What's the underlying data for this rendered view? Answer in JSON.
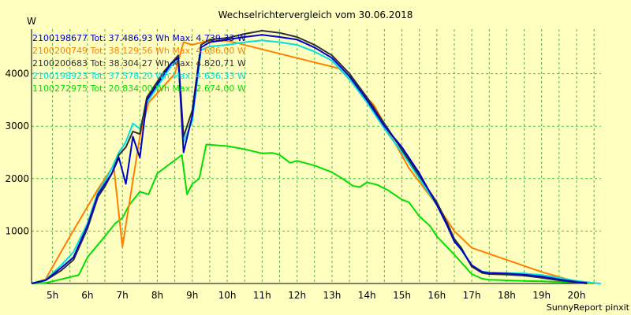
{
  "chart_data": {
    "type": "line",
    "title": "Wechselrichtervergleich vom 30.06.2018",
    "ylabel": "W",
    "xlabel": "",
    "footer": "SunnyReport pinxit",
    "ylim": [
      0,
      4850
    ],
    "xlim": [
      4.4,
      20.7
    ],
    "grid": true,
    "legend_position": "top-left",
    "y_ticks": [
      1000,
      2000,
      3000,
      4000
    ],
    "y_tick_labels": [
      "1000",
      "2000",
      "3000",
      "4000"
    ],
    "x_ticks": [
      5,
      6,
      7,
      8,
      9,
      10,
      11,
      12,
      13,
      14,
      15,
      16,
      17,
      18,
      19,
      20
    ],
    "x_tick_labels": [
      "5h",
      "6h",
      "7h",
      "8h",
      "9h",
      "10h",
      "11h",
      "12h",
      "13h",
      "14h",
      "15h",
      "16h",
      "17h",
      "18h",
      "19h",
      "20h"
    ],
    "series": [
      {
        "name": "2100198677",
        "legend": "2100198677 Tot: 37.486,93 Wh Max: 4.739,33 W",
        "color": "#0000c8",
        "points": [
          [
            4.4,
            0
          ],
          [
            4.8,
            60
          ],
          [
            5.25,
            300
          ],
          [
            5.6,
            500
          ],
          [
            6.0,
            1100
          ],
          [
            6.3,
            1700
          ],
          [
            6.5,
            1900
          ],
          [
            6.7,
            2100
          ],
          [
            6.9,
            2400
          ],
          [
            7.1,
            1900
          ],
          [
            7.3,
            2800
          ],
          [
            7.5,
            2400
          ],
          [
            7.7,
            3500
          ],
          [
            8.0,
            3800
          ],
          [
            8.2,
            4000
          ],
          [
            8.4,
            4200
          ],
          [
            8.6,
            4300
          ],
          [
            8.75,
            2500
          ],
          [
            9.0,
            3200
          ],
          [
            9.25,
            4500
          ],
          [
            9.5,
            4600
          ],
          [
            10.0,
            4650
          ],
          [
            10.5,
            4700
          ],
          [
            11.0,
            4740
          ],
          [
            11.5,
            4700
          ],
          [
            12.0,
            4650
          ],
          [
            12.5,
            4500
          ],
          [
            13.0,
            4300
          ],
          [
            13.5,
            3950
          ],
          [
            14.0,
            3500
          ],
          [
            14.5,
            3000
          ],
          [
            15.0,
            2600
          ],
          [
            15.5,
            2100
          ],
          [
            16.0,
            1500
          ],
          [
            16.3,
            1100
          ],
          [
            16.5,
            800
          ],
          [
            16.7,
            650
          ],
          [
            17.0,
            350
          ],
          [
            17.3,
            220
          ],
          [
            17.5,
            200
          ],
          [
            18.0,
            190
          ],
          [
            18.5,
            170
          ],
          [
            19.0,
            130
          ],
          [
            19.5,
            80
          ],
          [
            20.0,
            30
          ],
          [
            20.3,
            10
          ]
        ]
      },
      {
        "name": "2100200749",
        "legend": "2100200749 Tot: 38.129,56 Wh Max: 4.686,00 W",
        "color": "#ff8000",
        "points": [
          [
            4.4,
            0
          ],
          [
            4.8,
            80
          ],
          [
            5.5,
            900
          ],
          [
            6.3,
            1800
          ],
          [
            6.75,
            2250
          ],
          [
            7.0,
            700
          ],
          [
            7.5,
            2800
          ],
          [
            7.75,
            3450
          ],
          [
            8.1,
            3700
          ],
          [
            8.5,
            4000
          ],
          [
            8.75,
            4600
          ],
          [
            9.0,
            4550
          ],
          [
            9.4,
            4620
          ],
          [
            10.0,
            4630
          ],
          [
            10.25,
            4590
          ],
          [
            13.2,
            4100
          ],
          [
            14.2,
            3400
          ],
          [
            15.2,
            2200
          ],
          [
            16.0,
            1500
          ],
          [
            16.5,
            1000
          ],
          [
            17.0,
            680
          ],
          [
            19.0,
            220
          ],
          [
            20.0,
            30
          ],
          [
            20.5,
            0
          ]
        ]
      },
      {
        "name": "2100200683",
        "legend": "2100200683 Tot: 38.304,27 Wh Max: 4.820,71 W",
        "color": "#303030",
        "points": [
          [
            4.4,
            0
          ],
          [
            4.8,
            60
          ],
          [
            5.25,
            250
          ],
          [
            5.6,
            450
          ],
          [
            6.0,
            1050
          ],
          [
            6.3,
            1650
          ],
          [
            6.5,
            1850
          ],
          [
            6.7,
            2100
          ],
          [
            6.9,
            2450
          ],
          [
            7.1,
            2600
          ],
          [
            7.3,
            2900
          ],
          [
            7.5,
            2850
          ],
          [
            7.7,
            3550
          ],
          [
            8.0,
            3850
          ],
          [
            8.2,
            4050
          ],
          [
            8.4,
            4200
          ],
          [
            8.6,
            4350
          ],
          [
            8.75,
            2800
          ],
          [
            9.0,
            3300
          ],
          [
            9.25,
            4550
          ],
          [
            9.5,
            4650
          ],
          [
            10.0,
            4680
          ],
          [
            10.5,
            4760
          ],
          [
            11.0,
            4820
          ],
          [
            11.5,
            4780
          ],
          [
            12.0,
            4700
          ],
          [
            12.5,
            4550
          ],
          [
            13.0,
            4350
          ],
          [
            13.5,
            4000
          ],
          [
            14.0,
            3550
          ],
          [
            14.5,
            3050
          ],
          [
            15.0,
            2550
          ],
          [
            15.5,
            2050
          ],
          [
            16.0,
            1550
          ],
          [
            16.3,
            1150
          ],
          [
            16.5,
            850
          ],
          [
            16.7,
            680
          ],
          [
            17.0,
            320
          ],
          [
            17.3,
            200
          ],
          [
            17.5,
            180
          ],
          [
            18.0,
            170
          ],
          [
            18.5,
            150
          ],
          [
            19.0,
            110
          ],
          [
            19.5,
            60
          ],
          [
            20.0,
            20
          ],
          [
            20.3,
            0
          ]
        ]
      },
      {
        "name": "2100198923",
        "legend": "2100198923 Tot: 37.578,20 Wh Max: 4.636,33 W",
        "color": "#00e0e0",
        "points": [
          [
            4.4,
            0
          ],
          [
            4.8,
            70
          ],
          [
            5.25,
            350
          ],
          [
            5.6,
            600
          ],
          [
            6.0,
            1150
          ],
          [
            6.3,
            1750
          ],
          [
            6.5,
            1950
          ],
          [
            6.7,
            2200
          ],
          [
            6.9,
            2500
          ],
          [
            7.1,
            2700
          ],
          [
            7.3,
            3050
          ],
          [
            7.5,
            2950
          ],
          [
            7.7,
            3450
          ],
          [
            8.0,
            3750
          ],
          [
            8.2,
            3950
          ],
          [
            8.4,
            4150
          ],
          [
            8.6,
            4250
          ],
          [
            8.75,
            2700
          ],
          [
            9.0,
            3100
          ],
          [
            9.25,
            4450
          ],
          [
            9.5,
            4520
          ],
          [
            10.0,
            4550
          ],
          [
            10.5,
            4600
          ],
          [
            11.0,
            4636
          ],
          [
            11.5,
            4600
          ],
          [
            12.0,
            4550
          ],
          [
            12.5,
            4420
          ],
          [
            13.0,
            4250
          ],
          [
            13.5,
            3900
          ],
          [
            14.0,
            3450
          ],
          [
            14.5,
            2950
          ],
          [
            15.0,
            2500
          ],
          [
            15.5,
            2000
          ],
          [
            16.0,
            1500
          ],
          [
            16.3,
            1100
          ],
          [
            16.5,
            820
          ],
          [
            16.7,
            640
          ],
          [
            17.0,
            330
          ],
          [
            17.3,
            230
          ],
          [
            17.5,
            210
          ],
          [
            18.0,
            200
          ],
          [
            18.5,
            190
          ],
          [
            19.0,
            160
          ],
          [
            19.5,
            110
          ],
          [
            20.0,
            50
          ],
          [
            20.5,
            10
          ],
          [
            20.7,
            0
          ]
        ]
      },
      {
        "name": "1100272975",
        "legend": "1100272975 Tot: 20.834,00 Wh Max: 2.674,00 W",
        "color": "#00e000",
        "points": [
          [
            4.4,
            0
          ],
          [
            4.8,
            10
          ],
          [
            5.5,
            120
          ],
          [
            5.75,
            160
          ],
          [
            6.0,
            500
          ],
          [
            6.5,
            900
          ],
          [
            6.8,
            1150
          ],
          [
            7.0,
            1250
          ],
          [
            7.2,
            1500
          ],
          [
            7.5,
            1750
          ],
          [
            7.75,
            1700
          ],
          [
            8.0,
            2100
          ],
          [
            8.3,
            2250
          ],
          [
            8.5,
            2350
          ],
          [
            8.7,
            2450
          ],
          [
            8.85,
            1700
          ],
          [
            9.0,
            1900
          ],
          [
            9.2,
            2000
          ],
          [
            9.4,
            2650
          ],
          [
            10.0,
            2620
          ],
          [
            10.5,
            2560
          ],
          [
            11.0,
            2480
          ],
          [
            11.3,
            2490
          ],
          [
            11.5,
            2450
          ],
          [
            11.8,
            2300
          ],
          [
            12.0,
            2340
          ],
          [
            12.5,
            2250
          ],
          [
            13.0,
            2120
          ],
          [
            13.3,
            2000
          ],
          [
            13.6,
            1860
          ],
          [
            13.8,
            1840
          ],
          [
            14.0,
            1930
          ],
          [
            14.3,
            1880
          ],
          [
            14.6,
            1780
          ],
          [
            15.0,
            1600
          ],
          [
            15.2,
            1550
          ],
          [
            15.5,
            1280
          ],
          [
            15.8,
            1100
          ],
          [
            16.0,
            900
          ],
          [
            16.5,
            550
          ],
          [
            17.0,
            180
          ],
          [
            17.3,
            90
          ],
          [
            17.5,
            70
          ],
          [
            18.0,
            60
          ],
          [
            18.5,
            50
          ],
          [
            19.0,
            40
          ],
          [
            19.5,
            30
          ],
          [
            20.0,
            15
          ],
          [
            20.3,
            5
          ],
          [
            20.5,
            0
          ]
        ]
      }
    ]
  }
}
